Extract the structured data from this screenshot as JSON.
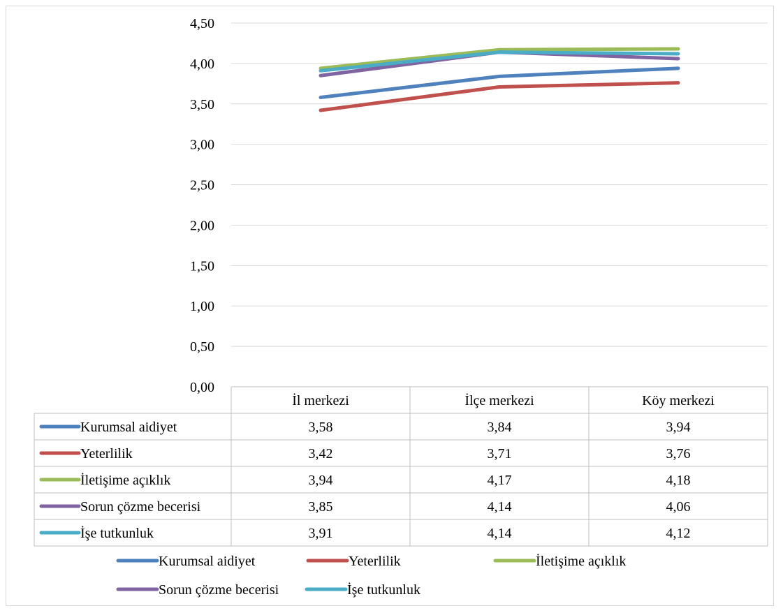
{
  "chart_data": {
    "type": "line",
    "categories": [
      "İl merkezi",
      "İlçe merkezi",
      "Köy merkezi"
    ],
    "series": [
      {
        "name": "Kurumsal aidiyet",
        "values": [
          3.58,
          3.84,
          3.94
        ],
        "color": "#4f81bd",
        "labels": [
          "3,58",
          "3,84",
          "3,94"
        ]
      },
      {
        "name": "Yeterlilik",
        "values": [
          3.42,
          3.71,
          3.76
        ],
        "color": "#c0504d",
        "labels": [
          "3,42",
          "3,71",
          "3,76"
        ]
      },
      {
        "name": "İletişime açıklık",
        "values": [
          3.94,
          4.17,
          4.18
        ],
        "color": "#9bbb59",
        "labels": [
          "3,94",
          "4,17",
          "4,18"
        ]
      },
      {
        "name": "Sorun çözme becerisi",
        "values": [
          3.85,
          4.14,
          4.06
        ],
        "color": "#8064a2",
        "labels": [
          "3,85",
          "4,14",
          "4,06"
        ]
      },
      {
        "name": "İşe tutkunluk",
        "values": [
          3.91,
          4.14,
          4.12
        ],
        "color": "#4bacc6",
        "labels": [
          "3,91",
          "4,14",
          "4,12"
        ]
      }
    ],
    "yticks": [
      "0,00",
      "0,50",
      "1,00",
      "1,50",
      "2,00",
      "2,50",
      "3,00",
      "3,50",
      "4,00",
      "4,50"
    ],
    "ylim": [
      0,
      4.5
    ],
    "grid": true,
    "data_table": true,
    "legend_position": "bottom"
  }
}
